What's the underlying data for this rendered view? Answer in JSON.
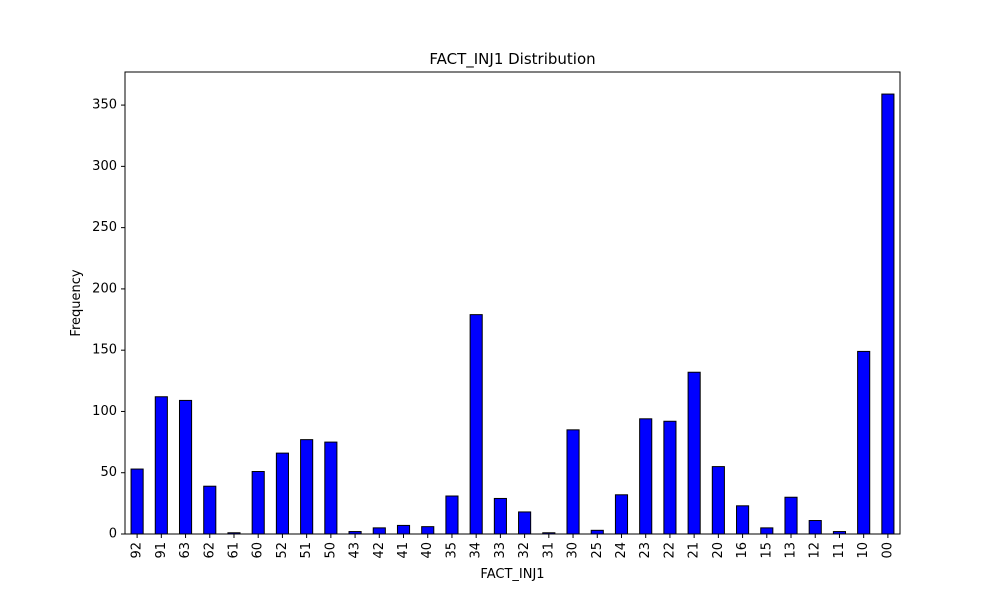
{
  "chart_data": {
    "type": "bar",
    "title": "FACT_INJ1 Distribution",
    "xlabel": "FACT_INJ1",
    "ylabel": "Frequency",
    "categories": [
      "92",
      "91",
      "63",
      "62",
      "61",
      "60",
      "52",
      "51",
      "50",
      "43",
      "42",
      "41",
      "40",
      "35",
      "34",
      "33",
      "32",
      "31",
      "30",
      "25",
      "24",
      "23",
      "22",
      "21",
      "20",
      "16",
      "15",
      "13",
      "12",
      "11",
      "10",
      "00"
    ],
    "values": [
      53,
      112,
      109,
      39,
      1,
      51,
      66,
      77,
      75,
      2,
      5,
      7,
      6,
      31,
      179,
      29,
      18,
      1,
      85,
      3,
      32,
      94,
      92,
      132,
      55,
      23,
      5,
      30,
      11,
      2,
      149,
      359
    ],
    "ylim": [
      0,
      377
    ],
    "yticks": [
      0,
      50,
      100,
      150,
      200,
      250,
      300,
      350
    ],
    "ytick_labels": [
      "0",
      "50",
      "100",
      "150",
      "200",
      "250",
      "300",
      "350"
    ],
    "grid": false,
    "legend": "none",
    "bar_color": "#0000ff",
    "edge_color": "#000000"
  }
}
